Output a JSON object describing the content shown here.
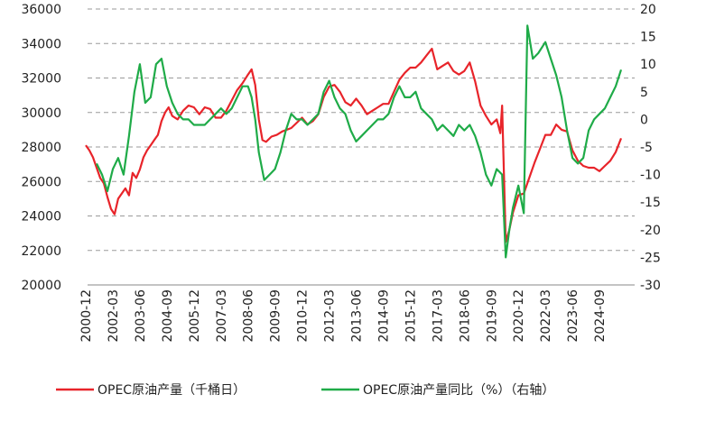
{
  "chart_data": {
    "type": "line",
    "title": "",
    "x_ticks": [
      "2000-12",
      "2002-03",
      "2003-06",
      "2004-09",
      "2005-12",
      "2007-03",
      "2008-06",
      "2009-09",
      "2010-12",
      "2012-03",
      "2013-06",
      "2014-09",
      "2015-12",
      "2017-03",
      "2018-06",
      "2019-09",
      "2020-12",
      "2022-03",
      "2023-06",
      "2024-09"
    ],
    "y_left": {
      "ticks": [
        20000,
        22000,
        24000,
        26000,
        28000,
        30000,
        32000,
        34000,
        36000
      ],
      "range": [
        20000,
        36000
      ]
    },
    "y_right": {
      "ticks": [
        -30,
        -25,
        -20,
        -15,
        -10,
        -5,
        0,
        5,
        10,
        15,
        20
      ],
      "range": [
        -30,
        20
      ]
    },
    "grid": "horizontal dashed",
    "legend_position": "bottom",
    "series": [
      {
        "name": "OPEC原油产量（千桶日）",
        "axis": "left",
        "color": "#e8242a",
        "points": [
          [
            "2000-12",
            28100
          ],
          [
            "2001-02",
            27800
          ],
          [
            "2001-04",
            27400
          ],
          [
            "2001-06",
            26800
          ],
          [
            "2001-08",
            26200
          ],
          [
            "2001-10",
            25900
          ],
          [
            "2001-12",
            25100
          ],
          [
            "2002-02",
            24400
          ],
          [
            "2002-04",
            24100
          ],
          [
            "2002-06",
            25000
          ],
          [
            "2002-08",
            25300
          ],
          [
            "2002-10",
            25600
          ],
          [
            "2002-12",
            25200
          ],
          [
            "2003-02",
            26500
          ],
          [
            "2003-04",
            26200
          ],
          [
            "2003-06",
            26700
          ],
          [
            "2003-08",
            27400
          ],
          [
            "2003-10",
            27800
          ],
          [
            "2003-12",
            28100
          ],
          [
            "2004-02",
            28400
          ],
          [
            "2004-04",
            28700
          ],
          [
            "2004-06",
            29500
          ],
          [
            "2004-08",
            30000
          ],
          [
            "2004-10",
            30300
          ],
          [
            "2004-12",
            29800
          ],
          [
            "2005-03",
            29600
          ],
          [
            "2005-06",
            30100
          ],
          [
            "2005-09",
            30400
          ],
          [
            "2005-12",
            30300
          ],
          [
            "2006-03",
            29900
          ],
          [
            "2006-06",
            30300
          ],
          [
            "2006-09",
            30200
          ],
          [
            "2006-12",
            29700
          ],
          [
            "2007-03",
            29700
          ],
          [
            "2007-06",
            30100
          ],
          [
            "2007-09",
            30700
          ],
          [
            "2007-12",
            31300
          ],
          [
            "2008-03",
            31700
          ],
          [
            "2008-06",
            32200
          ],
          [
            "2008-08",
            32500
          ],
          [
            "2008-10",
            31600
          ],
          [
            "2008-12",
            29600
          ],
          [
            "2009-02",
            28400
          ],
          [
            "2009-04",
            28300
          ],
          [
            "2009-07",
            28600
          ],
          [
            "2009-10",
            28700
          ],
          [
            "2010-01",
            28900
          ],
          [
            "2010-06",
            29100
          ],
          [
            "2010-12",
            29700
          ],
          [
            "2011-03",
            29300
          ],
          [
            "2011-06",
            29500
          ],
          [
            "2011-09",
            29900
          ],
          [
            "2011-12",
            30900
          ],
          [
            "2012-03",
            31500
          ],
          [
            "2012-06",
            31600
          ],
          [
            "2012-09",
            31200
          ],
          [
            "2012-12",
            30600
          ],
          [
            "2013-03",
            30400
          ],
          [
            "2013-06",
            30800
          ],
          [
            "2013-09",
            30400
          ],
          [
            "2013-12",
            29900
          ],
          [
            "2014-03",
            30100
          ],
          [
            "2014-06",
            30300
          ],
          [
            "2014-09",
            30500
          ],
          [
            "2014-12",
            30500
          ],
          [
            "2015-03",
            31200
          ],
          [
            "2015-06",
            31900
          ],
          [
            "2015-09",
            32300
          ],
          [
            "2015-12",
            32600
          ],
          [
            "2016-03",
            32600
          ],
          [
            "2016-06",
            32900
          ],
          [
            "2016-09",
            33300
          ],
          [
            "2016-12",
            33700
          ],
          [
            "2017-03",
            32500
          ],
          [
            "2017-06",
            32700
          ],
          [
            "2017-09",
            32900
          ],
          [
            "2017-12",
            32400
          ],
          [
            "2018-03",
            32200
          ],
          [
            "2018-06",
            32400
          ],
          [
            "2018-09",
            32900
          ],
          [
            "2018-12",
            31800
          ],
          [
            "2019-03",
            30400
          ],
          [
            "2019-06",
            29800
          ],
          [
            "2019-09",
            29300
          ],
          [
            "2019-12",
            29600
          ],
          [
            "2020-02",
            28800
          ],
          [
            "2020-03",
            30400
          ],
          [
            "2020-05",
            22500
          ],
          [
            "2020-07",
            23200
          ],
          [
            "2020-09",
            24200
          ],
          [
            "2020-12",
            25200
          ],
          [
            "2021-03",
            25300
          ],
          [
            "2021-06",
            26200
          ],
          [
            "2021-09",
            27100
          ],
          [
            "2021-12",
            27900
          ],
          [
            "2022-03",
            28700
          ],
          [
            "2022-06",
            28700
          ],
          [
            "2022-09",
            29300
          ],
          [
            "2022-12",
            29000
          ],
          [
            "2023-03",
            28900
          ],
          [
            "2023-06",
            27800
          ],
          [
            "2023-09",
            27200
          ],
          [
            "2023-12",
            26900
          ],
          [
            "2024-03",
            26800
          ],
          [
            "2024-06",
            26800
          ],
          [
            "2024-09",
            26600
          ],
          [
            "2024-12",
            26900
          ],
          [
            "2025-03",
            27200
          ],
          [
            "2025-06",
            27700
          ],
          [
            "2025-09",
            28500
          ]
        ]
      },
      {
        "name": "OPEC原油产量同比（%）（右轴）",
        "axis": "right",
        "color": "#1fab48",
        "points": [
          [
            "2001-06",
            -8
          ],
          [
            "2001-09",
            -10
          ],
          [
            "2001-12",
            -13
          ],
          [
            "2002-03",
            -9
          ],
          [
            "2002-06",
            -7
          ],
          [
            "2002-09",
            -10
          ],
          [
            "2002-12",
            -3
          ],
          [
            "2003-03",
            5
          ],
          [
            "2003-06",
            10
          ],
          [
            "2003-09",
            3
          ],
          [
            "2003-12",
            4
          ],
          [
            "2004-03",
            10
          ],
          [
            "2004-06",
            11
          ],
          [
            "2004-09",
            6
          ],
          [
            "2004-12",
            3
          ],
          [
            "2005-03",
            1
          ],
          [
            "2005-06",
            0
          ],
          [
            "2005-09",
            0
          ],
          [
            "2005-12",
            -1
          ],
          [
            "2006-03",
            -1
          ],
          [
            "2006-06",
            -1
          ],
          [
            "2006-09",
            0
          ],
          [
            "2006-12",
            1
          ],
          [
            "2007-03",
            2
          ],
          [
            "2007-06",
            1
          ],
          [
            "2007-09",
            2
          ],
          [
            "2007-12",
            4
          ],
          [
            "2008-03",
            6
          ],
          [
            "2008-06",
            6
          ],
          [
            "2008-08",
            4
          ],
          [
            "2008-10",
            0
          ],
          [
            "2008-12",
            -6
          ],
          [
            "2009-03",
            -11
          ],
          [
            "2009-06",
            -10
          ],
          [
            "2009-09",
            -9
          ],
          [
            "2009-12",
            -6
          ],
          [
            "2010-03",
            -2
          ],
          [
            "2010-06",
            1
          ],
          [
            "2010-09",
            0
          ],
          [
            "2010-12",
            0
          ],
          [
            "2011-03",
            -1
          ],
          [
            "2011-06",
            0
          ],
          [
            "2011-09",
            1
          ],
          [
            "2011-12",
            5
          ],
          [
            "2012-03",
            7
          ],
          [
            "2012-06",
            4
          ],
          [
            "2012-09",
            2
          ],
          [
            "2012-12",
            1
          ],
          [
            "2013-03",
            -2
          ],
          [
            "2013-06",
            -4
          ],
          [
            "2013-09",
            -3
          ],
          [
            "2013-12",
            -2
          ],
          [
            "2014-03",
            -1
          ],
          [
            "2014-06",
            0
          ],
          [
            "2014-09",
            0
          ],
          [
            "2014-12",
            1
          ],
          [
            "2015-03",
            4
          ],
          [
            "2015-06",
            6
          ],
          [
            "2015-09",
            4
          ],
          [
            "2015-12",
            4
          ],
          [
            "2016-03",
            5
          ],
          [
            "2016-06",
            2
          ],
          [
            "2016-09",
            1
          ],
          [
            "2016-12",
            0
          ],
          [
            "2017-03",
            -2
          ],
          [
            "2017-06",
            -1
          ],
          [
            "2017-09",
            -2
          ],
          [
            "2017-12",
            -3
          ],
          [
            "2018-03",
            -1
          ],
          [
            "2018-06",
            -2
          ],
          [
            "2018-09",
            -1
          ],
          [
            "2018-12",
            -3
          ],
          [
            "2019-03",
            -6
          ],
          [
            "2019-06",
            -10
          ],
          [
            "2019-09",
            -12
          ],
          [
            "2019-12",
            -9
          ],
          [
            "2020-03",
            -10
          ],
          [
            "2020-05",
            -25
          ],
          [
            "2020-07",
            -20
          ],
          [
            "2020-09",
            -16
          ],
          [
            "2020-12",
            -12
          ],
          [
            "2021-03",
            -17
          ],
          [
            "2021-05",
            17
          ],
          [
            "2021-08",
            11
          ],
          [
            "2021-11",
            12
          ],
          [
            "2022-03",
            14
          ],
          [
            "2022-06",
            11
          ],
          [
            "2022-09",
            8
          ],
          [
            "2022-12",
            4
          ],
          [
            "2023-03",
            -2
          ],
          [
            "2023-06",
            -7
          ],
          [
            "2023-09",
            -8
          ],
          [
            "2023-12",
            -7
          ],
          [
            "2024-03",
            -2
          ],
          [
            "2024-06",
            0
          ],
          [
            "2024-09",
            1
          ],
          [
            "2024-12",
            2
          ],
          [
            "2025-03",
            4
          ],
          [
            "2025-06",
            6
          ],
          [
            "2025-09",
            9
          ]
        ]
      }
    ]
  }
}
